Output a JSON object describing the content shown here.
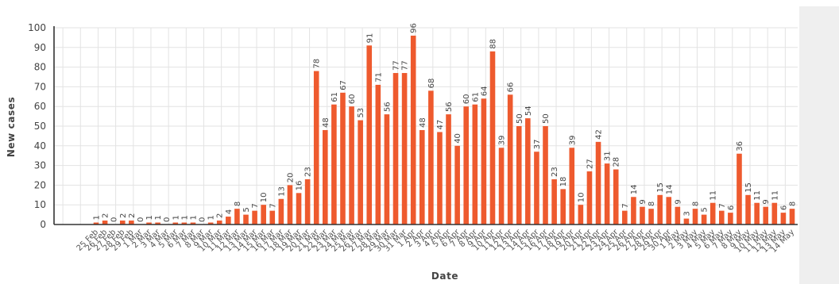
{
  "chart_data": {
    "type": "bar",
    "title": "",
    "xlabel": "Date",
    "ylabel": "New cases",
    "ylim": [
      0,
      100
    ],
    "yticks": [
      0,
      10,
      20,
      30,
      40,
      50,
      60,
      70,
      80,
      90,
      100
    ],
    "grid": true,
    "bar_color": "#ee5a2e",
    "categories": [
      "25 Feb",
      "26 Feb",
      "27 Feb",
      "28 Feb",
      "29 Feb",
      "1 Mar",
      "2 Mar",
      "3 Mar",
      "4 Mar",
      "5 Mar",
      "6 Mar",
      "7 Mar",
      "8 Mar",
      "9 Mar",
      "10 Mar",
      "11 Mar",
      "12 Mar",
      "13 Mar",
      "14 Mar",
      "15 Mar",
      "16 Mar",
      "17 Mar",
      "18 Mar",
      "19 Mar",
      "20 Mar",
      "21 Mar",
      "22 Mar",
      "23 Mar",
      "24 Mar",
      "25 Mar",
      "26 Mar",
      "27 Mar",
      "28 Mar",
      "29 Mar",
      "30 Mar",
      "31 Mar",
      "1 Apr",
      "2 Apr",
      "3 Apr",
      "4 Apr",
      "5 Apr",
      "6 Apr",
      "7 Apr",
      "8 Apr",
      "9 Apr",
      "10 Apr",
      "11 Apr",
      "12 Apr",
      "13 Apr",
      "14 Apr",
      "15 Apr",
      "16 Apr",
      "17 Apr",
      "18 Apr",
      "19 Apr",
      "20 Apr",
      "21 Apr",
      "22 Apr",
      "23 Apr",
      "24 Apr",
      "25 Apr",
      "26 Apr",
      "27 Apr",
      "28 Apr",
      "29 Apr",
      "30 Apr",
      "1 May",
      "2 May",
      "3 May",
      "4 May",
      "5 May",
      "6 May",
      "7 May",
      "8 May",
      "9 May",
      "10 May",
      "11 May",
      "12 May",
      "13 May",
      "14 May"
    ],
    "values": [
      1,
      2,
      0,
      2,
      2,
      0,
      1,
      1,
      0,
      1,
      1,
      1,
      0,
      1,
      2,
      4,
      8,
      5,
      7,
      10,
      7,
      13,
      20,
      16,
      23,
      78,
      48,
      61,
      67,
      60,
      53,
      91,
      71,
      56,
      77,
      77,
      96,
      48,
      68,
      47,
      56,
      40,
      60,
      61,
      64,
      88,
      39,
      66,
      50,
      54,
      37,
      50,
      23,
      18,
      39,
      10,
      27,
      42,
      31,
      28,
      7,
      14,
      9,
      8,
      15,
      14,
      9,
      3,
      8,
      5,
      11,
      7,
      6,
      36,
      15,
      11,
      9,
      11,
      6,
      8
    ]
  }
}
